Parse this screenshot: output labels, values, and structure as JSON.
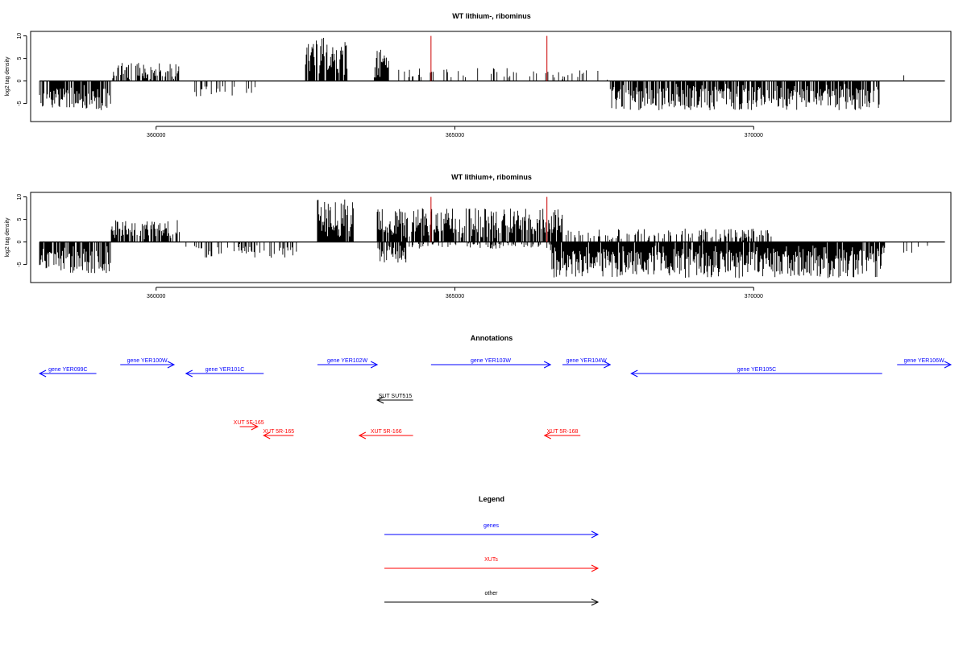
{
  "colors": {
    "gene": "#0000ff",
    "xut": "#ff0000",
    "other": "#000000",
    "marker": "#cc0000",
    "bars": "#000000"
  },
  "chart_data": [
    {
      "type": "bar",
      "title": "WT lithium-, ribominus",
      "ylabel": "log2 tag density",
      "xlim": [
        357900,
        373300
      ],
      "ylim": [
        -9,
        11
      ],
      "x_ticks": [
        360000,
        365000,
        370000
      ],
      "y_ticks": [
        -5,
        0,
        5,
        10
      ],
      "markers_x": [
        364600,
        366540
      ],
      "markers_height": 10,
      "regions": [
        {
          "from": 358050,
          "to": 359250,
          "strand": "minus",
          "amp": 6.5,
          "density": 0.75
        },
        {
          "from": 359250,
          "to": 360400,
          "strand": "plus",
          "amp": 4.0,
          "density": 0.6
        },
        {
          "from": 360600,
          "to": 361900,
          "strand": "minus",
          "amp": 3.5,
          "density": 0.2
        },
        {
          "from": 362500,
          "to": 363200,
          "strand": "plus",
          "amp": 9.8,
          "density": 0.8
        },
        {
          "from": 363650,
          "to": 363900,
          "strand": "plus",
          "amp": 7.5,
          "density": 0.9
        },
        {
          "from": 364000,
          "to": 366900,
          "strand": "plus",
          "amp": 3.0,
          "density": 0.18
        },
        {
          "from": 366900,
          "to": 367600,
          "strand": "plus",
          "amp": 2.5,
          "density": 0.15
        },
        {
          "from": 367600,
          "to": 372100,
          "strand": "minus",
          "amp": 6.5,
          "density": 0.8
        },
        {
          "from": 372500,
          "to": 372700,
          "strand": "plus",
          "amp": 1.5,
          "density": 0.1
        }
      ]
    },
    {
      "type": "bar",
      "title": "WT lithium+, ribominus",
      "ylabel": "log2 tag density",
      "xlim": [
        357900,
        373300
      ],
      "ylim": [
        -9,
        11
      ],
      "x_ticks": [
        360000,
        365000,
        370000
      ],
      "y_ticks": [
        -5,
        0,
        5,
        10
      ],
      "markers_x": [
        364600,
        366540
      ],
      "markers_height": 10,
      "regions": [
        {
          "from": 358050,
          "to": 359250,
          "strand": "minus",
          "amp": 7.0,
          "density": 0.85
        },
        {
          "from": 359250,
          "to": 360400,
          "strand": "plus",
          "amp": 5.0,
          "density": 0.8
        },
        {
          "from": 360500,
          "to": 362400,
          "strand": "minus",
          "amp": 3.5,
          "density": 0.3
        },
        {
          "from": 362700,
          "to": 363300,
          "strand": "plus",
          "amp": 9.5,
          "density": 0.95
        },
        {
          "from": 363700,
          "to": 366800,
          "strand": "plus",
          "amp": 7.5,
          "density": 0.8
        },
        {
          "from": 363700,
          "to": 364200,
          "strand": "minus",
          "amp": 5.0,
          "density": 0.6
        },
        {
          "from": 364200,
          "to": 366700,
          "strand": "minus",
          "amp": 1.5,
          "density": 0.3
        },
        {
          "from": 366600,
          "to": 372200,
          "strand": "minus",
          "amp": 8.0,
          "density": 0.95
        },
        {
          "from": 366800,
          "to": 370300,
          "strand": "plus",
          "amp": 3.0,
          "density": 0.35
        },
        {
          "from": 372500,
          "to": 373200,
          "strand": "minus",
          "amp": 2.5,
          "density": 0.1
        }
      ]
    },
    {
      "type": "annotation-track",
      "title": "Annotations",
      "features": [
        {
          "label": "gene YER099C",
          "kind": "gene",
          "start": 358050,
          "end": 359000,
          "strand": "-",
          "row": 1
        },
        {
          "label": "gene YER100W",
          "kind": "gene",
          "start": 359400,
          "end": 360300,
          "strand": "+",
          "row": 0
        },
        {
          "label": "gene YER101C",
          "kind": "gene",
          "start": 360500,
          "end": 361800,
          "strand": "-",
          "row": 1
        },
        {
          "label": "gene YER102W",
          "kind": "gene",
          "start": 362700,
          "end": 363700,
          "strand": "+",
          "row": 0
        },
        {
          "label": "gene YER103W",
          "kind": "gene",
          "start": 364600,
          "end": 366600,
          "strand": "+",
          "row": 0
        },
        {
          "label": "gene YER104W",
          "kind": "gene",
          "start": 366800,
          "end": 367600,
          "strand": "+",
          "row": 0
        },
        {
          "label": "gene YER105C",
          "kind": "gene",
          "start": 367950,
          "end": 372150,
          "strand": "-",
          "row": 1
        },
        {
          "label": "gene YER106W",
          "kind": "gene",
          "start": 372400,
          "end": 373300,
          "strand": "+",
          "row": 0
        },
        {
          "label": "SUT SUT515",
          "kind": "other",
          "start": 363700,
          "end": 364300,
          "strand": "-",
          "row": 4
        },
        {
          "label": "XUT 5F-165",
          "kind": "xut",
          "start": 361400,
          "end": 361700,
          "strand": "+",
          "row": 7
        },
        {
          "label": "XUT 5R-165",
          "kind": "xut",
          "start": 361800,
          "end": 362300,
          "strand": "-",
          "row": 8
        },
        {
          "label": "XUT 5R-166",
          "kind": "xut",
          "start": 363400,
          "end": 364300,
          "strand": "-",
          "row": 8
        },
        {
          "label": "XUT 5R-168",
          "kind": "xut",
          "start": 366500,
          "end": 367100,
          "strand": "-",
          "row": 8
        }
      ]
    },
    {
      "type": "legend",
      "title": "Legend",
      "entries": [
        {
          "label": "genes",
          "kind": "gene"
        },
        {
          "label": "XUTs",
          "kind": "xut"
        },
        {
          "label": "other",
          "kind": "other"
        }
      ]
    }
  ]
}
